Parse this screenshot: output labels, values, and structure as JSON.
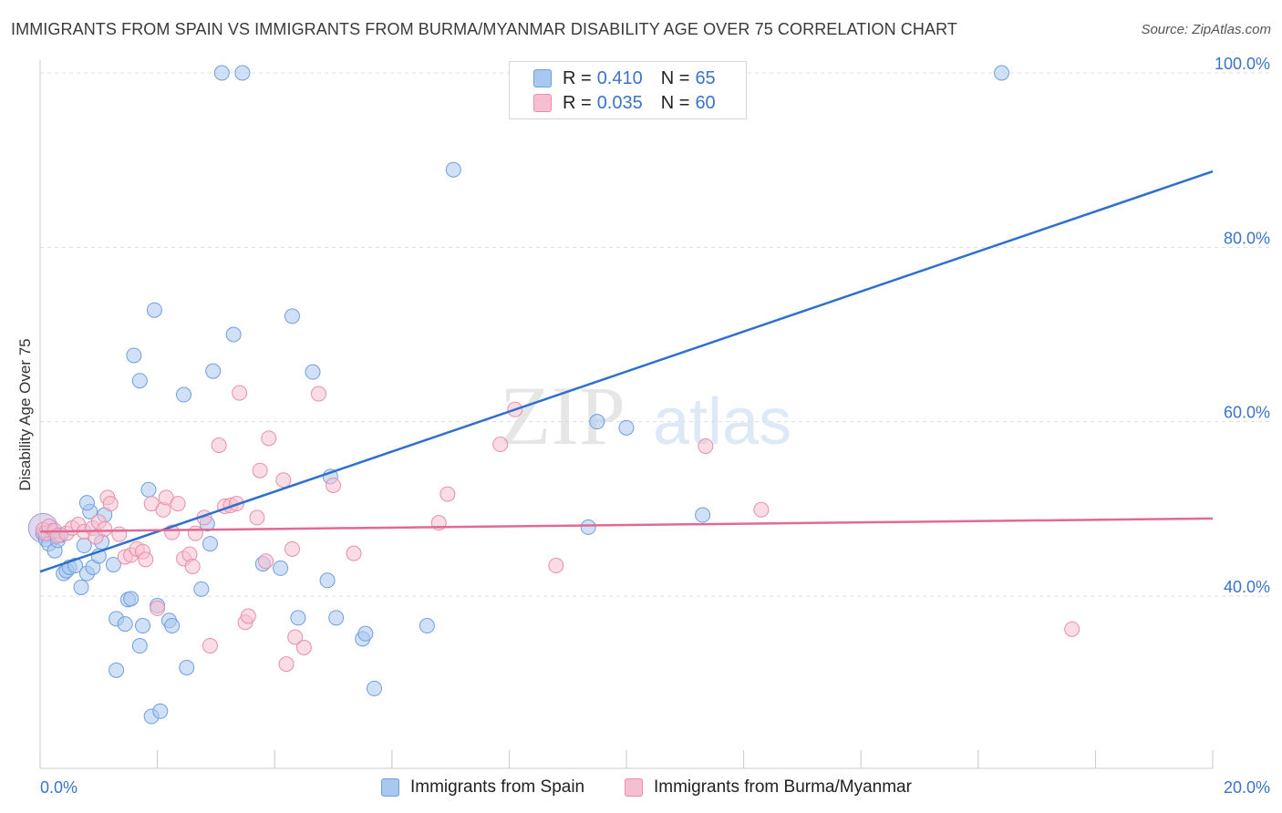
{
  "title": "IMMIGRANTS FROM SPAIN VS IMMIGRANTS FROM BURMA/MYANMAR DISABILITY AGE OVER 75 CORRELATION CHART",
  "source": "Source: ZipAtlas.com",
  "watermark": {
    "zip": "ZIP",
    "atlas": "atlas"
  },
  "colors": {
    "spain_fill": "#a9c8f0",
    "spain_stroke": "#6f9fdc",
    "spain_line": "#2f6fcd",
    "burma_fill": "#f6bfd0",
    "burma_stroke": "#e98fac",
    "burma_line": "#e06a95",
    "axis_label": "#3a73c9",
    "grid": "#dddddd"
  },
  "legend": {
    "rows": [
      {
        "r_label": "R =",
        "r_value": "0.410",
        "n_label": "N =",
        "n_value": "65"
      },
      {
        "r_label": "R =",
        "r_value": "0.035",
        "n_label": "N =",
        "n_value": "60"
      }
    ]
  },
  "chart_data": {
    "type": "scatter",
    "title": "IMMIGRANTS FROM SPAIN VS IMMIGRANTS FROM BURMA/MYANMAR DISABILITY AGE OVER 75 CORRELATION CHART",
    "xlabel": "",
    "ylabel": "Disability Age Over 75",
    "xlim": [
      0,
      20
    ],
    "ylim": [
      20,
      102
    ],
    "x_tick_labels": [
      "0.0%",
      "20.0%"
    ],
    "y_ticks": [
      40,
      60,
      80,
      100
    ],
    "y_tick_labels": [
      "40.0%",
      "60.0%",
      "80.0%",
      "100.0%"
    ],
    "grid": "horizontal dashed",
    "legend_position": "top-center",
    "series": [
      {
        "name": "Immigrants from Spain",
        "R": 0.41,
        "N": 65,
        "trend": {
          "x": [
            0,
            20
          ],
          "y": [
            42.8,
            88.7
          ]
        },
        "points": [
          [
            0.05,
            47.2
          ],
          [
            0.1,
            46.5
          ],
          [
            0.15,
            46.0
          ],
          [
            0.2,
            47.5
          ],
          [
            0.25,
            45.2
          ],
          [
            0.3,
            46.4
          ],
          [
            0.35,
            47.0
          ],
          [
            0.4,
            42.6
          ],
          [
            0.45,
            42.9
          ],
          [
            0.5,
            43.3
          ],
          [
            0.6,
            43.5
          ],
          [
            0.7,
            41.0
          ],
          [
            0.75,
            45.8
          ],
          [
            0.8,
            42.6
          ],
          [
            0.9,
            43.3
          ],
          [
            1.0,
            44.6
          ],
          [
            1.05,
            46.2
          ],
          [
            1.1,
            49.3
          ],
          [
            0.85,
            49.7
          ],
          [
            0.8,
            50.7
          ],
          [
            1.25,
            43.6
          ],
          [
            1.3,
            31.5
          ],
          [
            1.3,
            37.4
          ],
          [
            1.45,
            36.8
          ],
          [
            1.5,
            39.6
          ],
          [
            1.55,
            39.7
          ],
          [
            1.6,
            67.6
          ],
          [
            1.7,
            64.7
          ],
          [
            1.7,
            34.3
          ],
          [
            1.75,
            36.6
          ],
          [
            1.85,
            52.2
          ],
          [
            1.9,
            26.2
          ],
          [
            1.95,
            72.8
          ],
          [
            2.0,
            38.9
          ],
          [
            2.05,
            26.8
          ],
          [
            2.2,
            37.2
          ],
          [
            2.25,
            36.6
          ],
          [
            2.45,
            63.1
          ],
          [
            2.5,
            31.8
          ],
          [
            2.75,
            40.8
          ],
          [
            2.85,
            48.3
          ],
          [
            2.9,
            46.0
          ],
          [
            2.95,
            65.8
          ],
          [
            3.1,
            100.0
          ],
          [
            3.3,
            70.0
          ],
          [
            3.45,
            100.0
          ],
          [
            3.8,
            43.7
          ],
          [
            4.1,
            43.2
          ],
          [
            4.3,
            72.1
          ],
          [
            4.4,
            37.5
          ],
          [
            4.65,
            65.7
          ],
          [
            4.9,
            41.8
          ],
          [
            4.95,
            53.7
          ],
          [
            5.05,
            37.5
          ],
          [
            5.5,
            35.1
          ],
          [
            5.55,
            35.7
          ],
          [
            5.7,
            29.4
          ],
          [
            6.6,
            36.6
          ],
          [
            7.05,
            88.9
          ],
          [
            8.2,
            100.0
          ],
          [
            9.35,
            47.9
          ],
          [
            9.5,
            60.0
          ],
          [
            10.0,
            59.3
          ],
          [
            11.3,
            49.3
          ],
          [
            16.4,
            100.0
          ]
        ]
      },
      {
        "name": "Immigrants from Burma/Myanmar",
        "R": 0.035,
        "N": 60,
        "trend": {
          "x": [
            0,
            20
          ],
          "y": [
            47.4,
            48.9
          ]
        },
        "points": [
          [
            0.05,
            47.6
          ],
          [
            0.1,
            47.2
          ],
          [
            0.15,
            48.0
          ],
          [
            0.25,
            47.5
          ],
          [
            0.3,
            46.9
          ],
          [
            0.45,
            47.2
          ],
          [
            0.55,
            47.8
          ],
          [
            0.65,
            48.2
          ],
          [
            0.75,
            47.4
          ],
          [
            0.9,
            47.8
          ],
          [
            0.95,
            46.8
          ],
          [
            1.0,
            48.5
          ],
          [
            1.1,
            47.7
          ],
          [
            1.15,
            51.3
          ],
          [
            1.2,
            50.6
          ],
          [
            1.35,
            47.1
          ],
          [
            1.45,
            44.5
          ],
          [
            1.55,
            44.7
          ],
          [
            1.65,
            45.4
          ],
          [
            1.75,
            45.1
          ],
          [
            1.8,
            44.2
          ],
          [
            1.9,
            50.6
          ],
          [
            2.0,
            38.6
          ],
          [
            2.1,
            49.9
          ],
          [
            2.15,
            51.3
          ],
          [
            2.25,
            47.3
          ],
          [
            2.35,
            50.6
          ],
          [
            2.45,
            44.3
          ],
          [
            2.55,
            44.8
          ],
          [
            2.6,
            43.4
          ],
          [
            2.65,
            47.2
          ],
          [
            2.8,
            49.0
          ],
          [
            2.9,
            34.3
          ],
          [
            3.05,
            57.3
          ],
          [
            3.15,
            50.3
          ],
          [
            3.25,
            50.4
          ],
          [
            3.35,
            50.6
          ],
          [
            3.4,
            63.3
          ],
          [
            3.5,
            37.0
          ],
          [
            3.55,
            37.7
          ],
          [
            3.7,
            49.0
          ],
          [
            3.75,
            54.4
          ],
          [
            3.85,
            44.0
          ],
          [
            3.9,
            58.1
          ],
          [
            4.15,
            53.3
          ],
          [
            4.2,
            32.2
          ],
          [
            4.3,
            45.4
          ],
          [
            4.35,
            35.3
          ],
          [
            4.5,
            34.1
          ],
          [
            4.75,
            63.2
          ],
          [
            5.0,
            52.7
          ],
          [
            5.35,
            44.9
          ],
          [
            6.8,
            48.4
          ],
          [
            6.95,
            51.7
          ],
          [
            7.85,
            57.4
          ],
          [
            8.1,
            61.4
          ],
          [
            8.8,
            43.5
          ],
          [
            11.35,
            57.2
          ],
          [
            12.3,
            49.9
          ],
          [
            17.6,
            36.2
          ]
        ]
      }
    ]
  },
  "bottom_legend": [
    {
      "label": "Immigrants from Spain"
    },
    {
      "label": "Immigrants from Burma/Myanmar"
    }
  ]
}
